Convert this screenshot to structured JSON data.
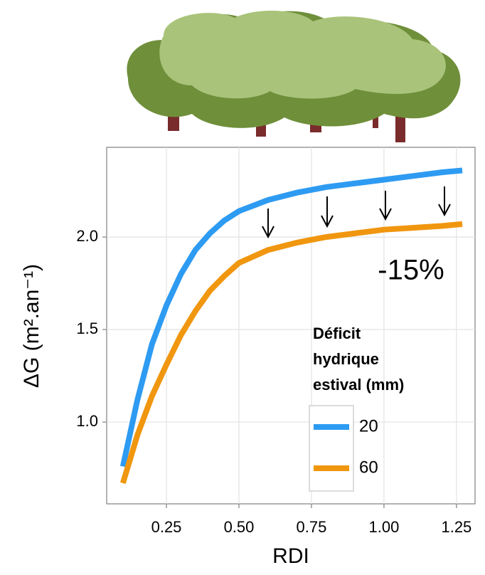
{
  "chart_data": {
    "type": "line",
    "xlabel": "RDI",
    "ylabel": "ΔG (m².an⁻¹)",
    "x": [
      0.1,
      0.15,
      0.2,
      0.25,
      0.3,
      0.35,
      0.4,
      0.45,
      0.5,
      0.6,
      0.7,
      0.8,
      0.9,
      1.0,
      1.1,
      1.2,
      1.27
    ],
    "series": [
      {
        "name": "20",
        "color": "#2e9bf2",
        "values": [
          0.76,
          1.12,
          1.42,
          1.63,
          1.8,
          1.93,
          2.02,
          2.09,
          2.14,
          2.2,
          2.24,
          2.27,
          2.29,
          2.31,
          2.33,
          2.35,
          2.36
        ]
      },
      {
        "name": "60",
        "color": "#f0960f",
        "values": [
          0.67,
          0.93,
          1.14,
          1.31,
          1.47,
          1.6,
          1.71,
          1.79,
          1.86,
          1.93,
          1.97,
          2.0,
          2.02,
          2.04,
          2.05,
          2.06,
          2.07
        ]
      }
    ],
    "xlim": [
      0.044,
      1.314
    ],
    "ylim": [
      0.558,
      2.485
    ],
    "xticks": [
      {
        "value": 0.25,
        "label": "0.25"
      },
      {
        "value": 0.5,
        "label": "0.50"
      },
      {
        "value": 0.75,
        "label": "0.75"
      },
      {
        "value": 1.0,
        "label": "1.00"
      },
      {
        "value": 1.25,
        "label": "1.25"
      }
    ],
    "yticks": [
      {
        "value": 1.0,
        "label": "1.0"
      },
      {
        "value": 1.5,
        "label": "1.5"
      },
      {
        "value": 2.0,
        "label": "2.0"
      }
    ],
    "grid": true,
    "legend_title": [
      "Déficit",
      "hydrique",
      "estival (mm)"
    ],
    "annotation": "-15%"
  }
}
